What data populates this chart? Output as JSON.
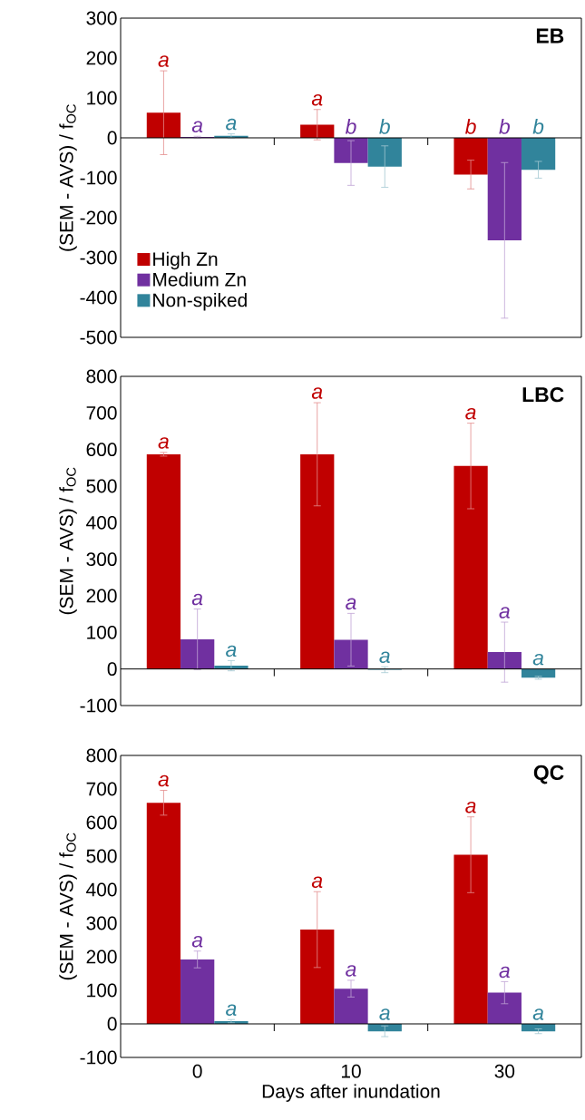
{
  "chart_data": [
    {
      "type": "bar",
      "title": "EB",
      "ylabel": "(SEM - AVS) / f$_{OC}$",
      "categories": [
        "0",
        "10",
        "30"
      ],
      "ylim": [
        -500,
        300
      ],
      "yticks": [
        -500,
        -400,
        -300,
        -200,
        -100,
        0,
        100,
        200,
        300
      ],
      "tick_labels": "y",
      "legend": "bottom left",
      "series": [
        {
          "name": "High Zn",
          "color": "#c00000",
          "values": [
            63,
            33,
            -92
          ],
          "errors": [
            105,
            38,
            36
          ],
          "value_labels": [
            "a",
            "a",
            "b"
          ]
        },
        {
          "name": "Medium Zn",
          "color": "#7030a0",
          "values": [
            2,
            -63,
            -257
          ],
          "errors": [
            2,
            56,
            195
          ],
          "value_labels": [
            "a",
            "b",
            "b"
          ]
        },
        {
          "name": "Non-spiked",
          "color": "#31849b",
          "values": [
            5,
            -72,
            -80
          ],
          "errors": [
            5,
            52,
            21
          ],
          "value_labels": [
            "a",
            "b",
            "b"
          ]
        }
      ]
    },
    {
      "type": "bar",
      "title": "LBC",
      "ylabel": "(SEM - AVS) / f$_{OC}$",
      "categories": [
        "0",
        "10",
        "30"
      ],
      "ylim": [
        -100,
        800
      ],
      "yticks": [
        -100,
        0,
        100,
        200,
        300,
        400,
        500,
        600,
        700,
        800
      ],
      "tick_labels": "y",
      "series": [
        {
          "color": "#c00000",
          "values": [
            587,
            587,
            555
          ],
          "errors": [
            5,
            141,
            117
          ],
          "value_labels": [
            "a",
            "a",
            "a"
          ]
        },
        {
          "color": "#7030a0",
          "values": [
            81,
            80,
            46
          ],
          "errors": [
            83,
            72,
            82
          ],
          "value_labels": [
            "a",
            "a",
            "a"
          ]
        },
        {
          "color": "#31849b",
          "values": [
            9,
            -2,
            -24
          ],
          "errors": [
            14,
            8,
            4
          ],
          "value_labels": [
            "a",
            "a",
            "a"
          ]
        }
      ]
    },
    {
      "type": "bar",
      "title": "QC",
      "ylabel": "(SEM - AVS) / f$_{OC}$",
      "xlabel": "Days after inundation",
      "categories": [
        "0",
        "10",
        "30"
      ],
      "ylim": [
        -100,
        800
      ],
      "yticks": [
        -100,
        0,
        100,
        200,
        300,
        400,
        500,
        600,
        700,
        800
      ],
      "series": [
        {
          "color": "#c00000",
          "values": [
            659,
            281,
            504
          ],
          "errors": [
            37,
            113,
            113
          ],
          "value_labels": [
            "a",
            "a",
            "a"
          ]
        },
        {
          "color": "#7030a0",
          "values": [
            192,
            105,
            93
          ],
          "errors": [
            25,
            25,
            33
          ],
          "value_labels": [
            "a",
            "a",
            "a"
          ]
        },
        {
          "color": "#31849b",
          "values": [
            8,
            -22,
            -22
          ],
          "errors": [
            5,
            16,
            7
          ],
          "value_labels": [
            "a",
            "a",
            "a"
          ]
        }
      ]
    }
  ]
}
